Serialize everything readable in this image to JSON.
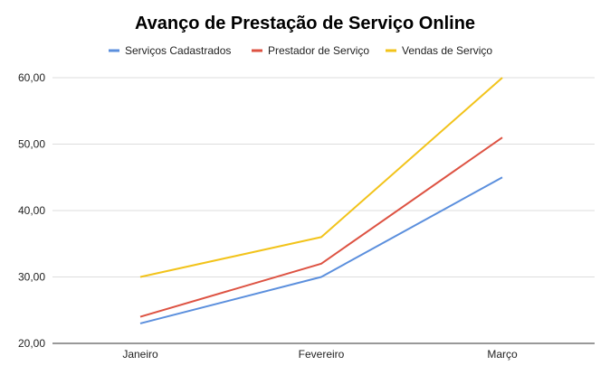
{
  "chart_data": {
    "type": "line",
    "title": "Avanço de Prestação de Serviço Online",
    "categories": [
      "Janeiro",
      "Fevereiro",
      "Março"
    ],
    "series": [
      {
        "name": "Serviços Cadastrados",
        "color": "#5B8FDD",
        "values": [
          23,
          30,
          45
        ]
      },
      {
        "name": "Prestador de Serviço",
        "color": "#DD5242",
        "values": [
          24,
          32,
          51
        ]
      },
      {
        "name": "Vendas de Serviço",
        "color": "#F2C31A",
        "values": [
          30,
          36,
          60
        ]
      }
    ],
    "yticks": [
      "20,00",
      "30,00",
      "40,00",
      "50,00",
      "60,00"
    ],
    "ylim": [
      20,
      60
    ],
    "grid": true,
    "legend": "top-center"
  }
}
